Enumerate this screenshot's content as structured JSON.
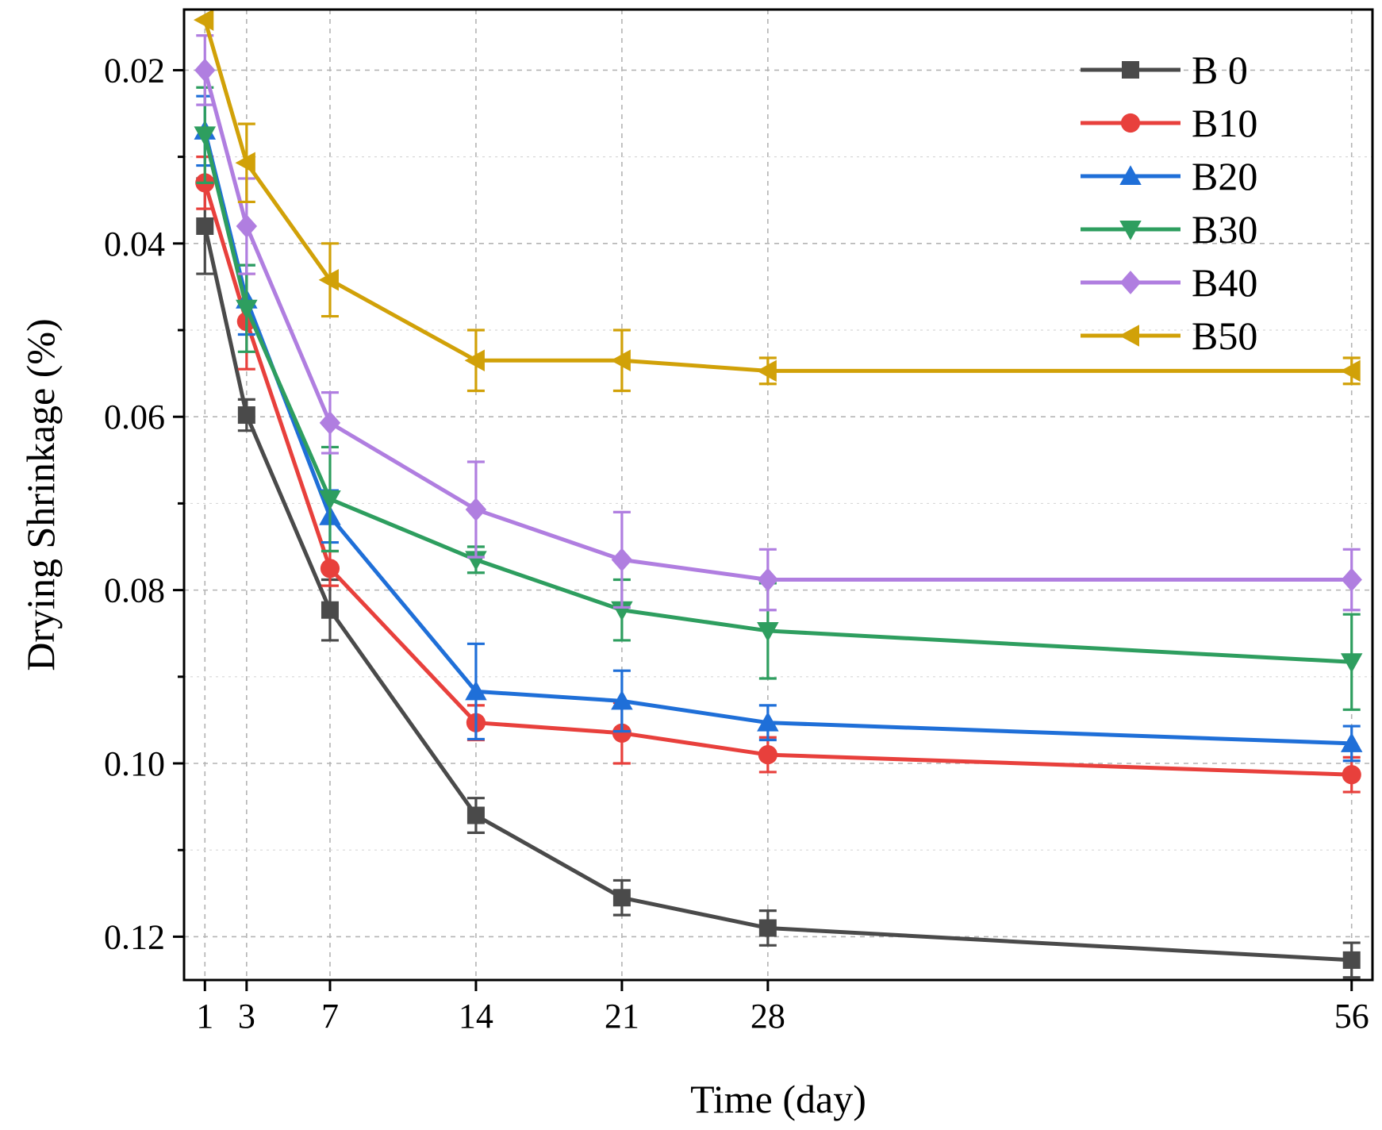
{
  "chart_data": {
    "type": "line",
    "title": "",
    "xlabel": "Time (day)",
    "ylabel": "Drying Shrinkage (%)",
    "x": [
      1,
      3,
      7,
      14,
      21,
      28,
      56
    ],
    "xticks": [
      1,
      3,
      7,
      14,
      21,
      28,
      56
    ],
    "xtick_labels": [
      "1",
      "3",
      "7",
      "14",
      "21",
      "28",
      "56"
    ],
    "xlim": [
      0,
      57
    ],
    "ylim": [
      0.013,
      0.125
    ],
    "y_inverted": true,
    "yticks": [
      0.02,
      0.04,
      0.06,
      0.08,
      0.1,
      0.12
    ],
    "ytick_labels": [
      "0.02",
      "0.04",
      "0.06",
      "0.08",
      "0.10",
      "0.12"
    ],
    "grid": true,
    "legend_position": "top-right",
    "series": [
      {
        "name": "B 0",
        "color": "#4a4a4a",
        "marker": "square",
        "values": [
          0.038,
          0.0598,
          0.0823,
          0.106,
          0.1155,
          0.119,
          0.1227
        ],
        "errors": [
          0.0055,
          0.0018,
          0.0035,
          0.002,
          0.002,
          0.002,
          0.002
        ]
      },
      {
        "name": "B10",
        "color": "#e8403c",
        "marker": "circle",
        "values": [
          0.033,
          0.049,
          0.0775,
          0.0953,
          0.0965,
          0.099,
          0.1013
        ],
        "errors": [
          0.003,
          0.0055,
          0.002,
          0.002,
          0.0035,
          0.002,
          0.002
        ]
      },
      {
        "name": "B20",
        "color": "#1f6fd8",
        "marker": "triangle-up",
        "values": [
          0.027,
          0.0465,
          0.0715,
          0.0917,
          0.0928,
          0.0953,
          0.0977
        ],
        "errors": [
          0.004,
          0.004,
          0.003,
          0.0055,
          0.0035,
          0.002,
          0.002
        ]
      },
      {
        "name": "B30",
        "color": "#2e9e5f",
        "marker": "triangle-down",
        "values": [
          0.0275,
          0.0475,
          0.0695,
          0.0765,
          0.0823,
          0.0847,
          0.0883
        ],
        "errors": [
          0.0055,
          0.005,
          0.006,
          0.0015,
          0.0035,
          0.0055,
          0.0055
        ]
      },
      {
        "name": "B40",
        "color": "#b07ee0",
        "marker": "diamond",
        "values": [
          0.02,
          0.038,
          0.0607,
          0.0707,
          0.0765,
          0.0788,
          0.0788
        ],
        "errors": [
          0.004,
          0.0055,
          0.0035,
          0.0055,
          0.0055,
          0.0035,
          0.0035
        ]
      },
      {
        "name": "B50",
        "color": "#d1a108",
        "marker": "triangle-left",
        "values": [
          0.0142,
          0.0307,
          0.0442,
          0.0535,
          0.0535,
          0.0547,
          0.0547
        ],
        "errors": [
          0.0,
          0.0045,
          0.0042,
          0.0035,
          0.0035,
          0.0015,
          0.0015
        ]
      }
    ]
  }
}
